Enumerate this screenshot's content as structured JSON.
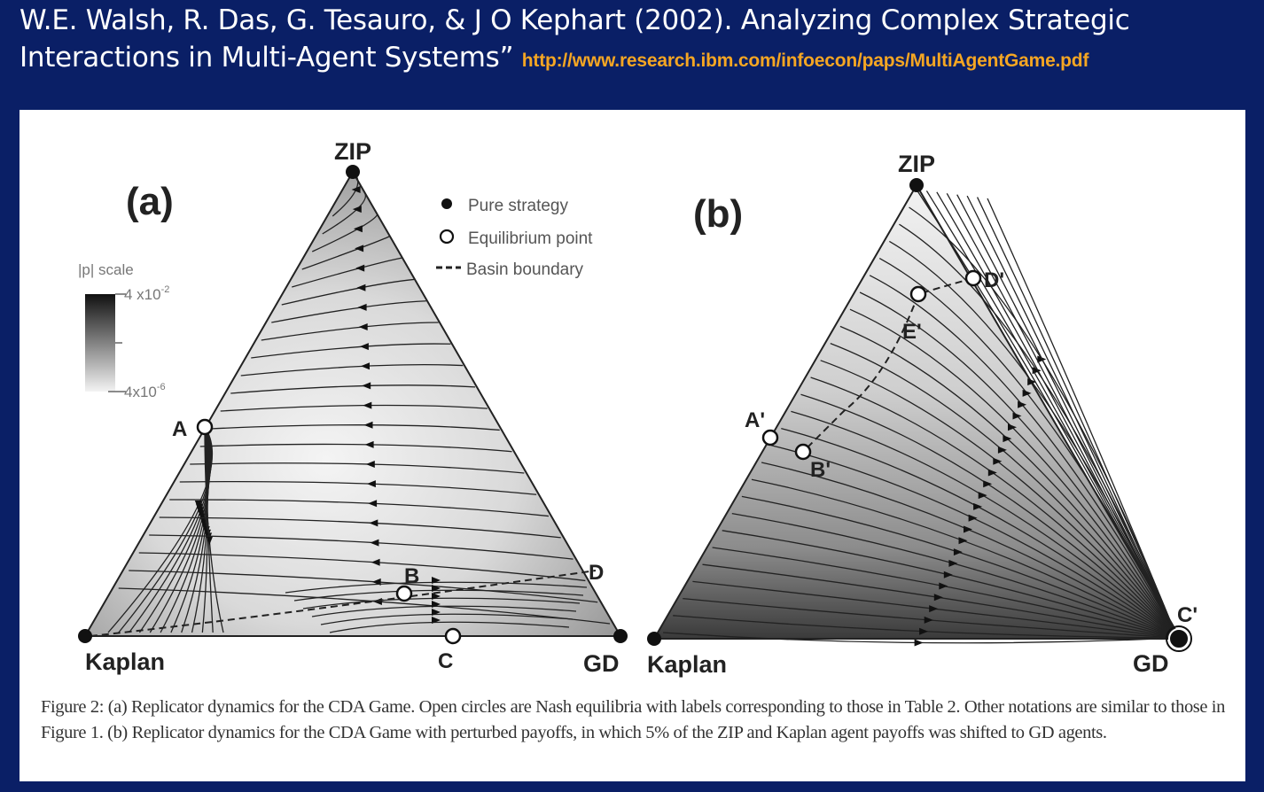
{
  "header": {
    "citation": "W.E. Walsh, R. Das, G. Tesauro, & J O Kephart (2002). Analyzing Complex Strategic Interactions in Multi-Agent Systems”",
    "url": "http://www.research.ibm.com/infoecon/paps/MultiAgentGame.pdf"
  },
  "figure": {
    "panel_a": {
      "label": "(a)",
      "vertex_top": "ZIP",
      "vertex_left": "Kaplan",
      "vertex_right": "GD",
      "points": {
        "A": "A",
        "B": "B",
        "C": "C",
        "D": "D"
      }
    },
    "panel_b": {
      "label": "(b)",
      "vertex_top": "ZIP",
      "vertex_left": "Kaplan",
      "vertex_right": "GD",
      "points": {
        "A": "A'",
        "B": "B'",
        "C": "C'",
        "D": "D'",
        "E": "E'"
      }
    },
    "legend": {
      "pure": "Pure strategy",
      "equilibrium": "Equilibrium point",
      "basin": "Basin boundary"
    },
    "scale": {
      "title": "|p| scale",
      "max": "4 x10",
      "max_exp": "-2",
      "min": "4x10",
      "min_exp": "-6"
    }
  },
  "caption": "Figure 2: (a) Replicator dynamics for the CDA Game. Open circles are Nash equilibria with labels corresponding to those in Table 2. Other notations are similar to those in Figure 1. (b) Replicator dynamics for the CDA Game with perturbed payoffs, in which 5% of the ZIP and Kaplan agent payoffs was shifted to GD agents."
}
